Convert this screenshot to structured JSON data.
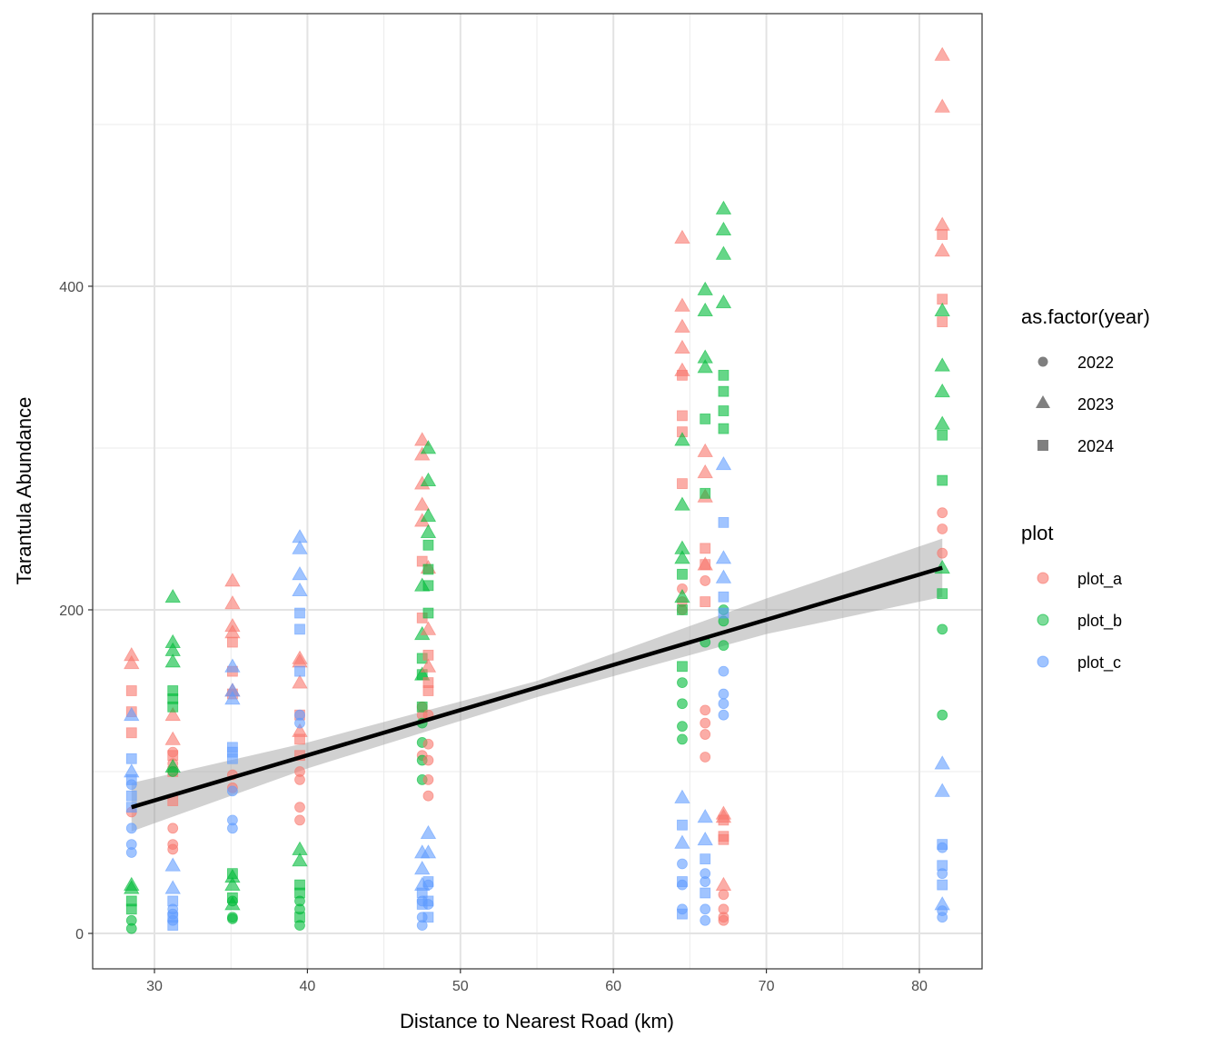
{
  "chart_data": {
    "type": "scatter",
    "xlabel": "Distance to Nearest Road (km)",
    "ylabel": "Tarantula Abundance",
    "xlim": [
      25.96,
      84.1
    ],
    "ylim": [
      -21.9,
      568.5
    ],
    "xticks": [
      30,
      40,
      50,
      60,
      70,
      80
    ],
    "yticks": [
      0,
      200,
      400
    ],
    "grid": true,
    "colors": {
      "plot_a": "#F8766D",
      "plot_b": "#00BA38",
      "plot_c": "#619CFF"
    },
    "shapes": {
      "2022": "circle",
      "2023": "triangle",
      "2024": "square"
    },
    "legend": {
      "placement": "right",
      "shape_title": "as.factor(year)",
      "shape_entries": [
        "2022",
        "2023",
        "2024"
      ],
      "color_title": "plot",
      "color_entries": [
        "plot_a",
        "plot_b",
        "plot_c"
      ]
    },
    "groups": [
      {
        "x": 28.5,
        "plot_a": {
          "2022": [
            75
          ],
          "2023": [
            172,
            167
          ],
          "2024": [
            150,
            137,
            124
          ]
        },
        "plot_b": {
          "2022": [
            8,
            3
          ],
          "2023": [
            30,
            28
          ],
          "2024": [
            20,
            15
          ]
        },
        "plot_c": {
          "2022": [
            92,
            65,
            55,
            50
          ],
          "2023": [
            135,
            100
          ],
          "2024": [
            108,
            95,
            85,
            78
          ]
        }
      },
      {
        "x": 31.2,
        "plot_a": {
          "2022": [
            112,
            105,
            65,
            55,
            52
          ],
          "2023": [
            135,
            120
          ],
          "2024": [
            110,
            100,
            82
          ]
        },
        "plot_b": {
          "2022": [
            100
          ],
          "2023": [
            208,
            180,
            175,
            168,
            103
          ],
          "2024": [
            150,
            145,
            140
          ]
        },
        "plot_c": {
          "2022": [
            15,
            12,
            8
          ],
          "2023": [
            42,
            28
          ],
          "2024": [
            20,
            10,
            5
          ]
        }
      },
      {
        "x": 35.1,
        "plot_a": {
          "2022": [
            98,
            90
          ],
          "2023": [
            218,
            204,
            190,
            186,
            150
          ],
          "2024": [
            180,
            162,
            148
          ]
        },
        "plot_b": {
          "2022": [
            20,
            10,
            9
          ],
          "2023": [
            35,
            30,
            18
          ],
          "2024": [
            37,
            22
          ]
        },
        "plot_c": {
          "2022": [
            88,
            70,
            65
          ],
          "2023": [
            165,
            150,
            145
          ],
          "2024": [
            115,
            112,
            108
          ]
        }
      },
      {
        "x": 39.5,
        "plot_a": {
          "2022": [
            100,
            95,
            78,
            70
          ],
          "2023": [
            170,
            168,
            155,
            125
          ],
          "2024": [
            135,
            120,
            110
          ]
        },
        "plot_b": {
          "2022": [
            20,
            15,
            5
          ],
          "2023": [
            52,
            45
          ],
          "2024": [
            30,
            25,
            10
          ]
        },
        "plot_c": {
          "2022": [
            135,
            130
          ],
          "2023": [
            245,
            238,
            222,
            212
          ],
          "2024": [
            198,
            188,
            162
          ]
        }
      },
      {
        "x": 47.5,
        "plot_a": {
          "2022": [
            140,
            135,
            110
          ],
          "2023": [
            305,
            296,
            278,
            265,
            255
          ],
          "2024": [
            230,
            195
          ]
        },
        "plot_b": {
          "2022": [
            130,
            118,
            107,
            95
          ],
          "2023": [
            215,
            185,
            160
          ],
          "2024": [
            170,
            160,
            140
          ]
        },
        "plot_c": {
          "2022": [
            20,
            10,
            5
          ],
          "2023": [
            50,
            40,
            30
          ],
          "2024": [
            25,
            18
          ]
        }
      },
      {
        "x": 47.9,
        "plot_a": {
          "2022": [
            135,
            117,
            107,
            95,
            85
          ],
          "2023": [
            226,
            188,
            165
          ],
          "2024": [
            172,
            155,
            150
          ]
        },
        "plot_b": {
          "2022": [],
          "2023": [
            300,
            280,
            258,
            248
          ],
          "2024": [
            240,
            225,
            215,
            198
          ]
        },
        "plot_c": {
          "2022": [
            30,
            18
          ],
          "2023": [
            62,
            50
          ],
          "2024": [
            32,
            20,
            10
          ]
        }
      },
      {
        "x": 64.5,
        "plot_a": {
          "2022": [
            213,
            205,
            200
          ],
          "2023": [
            430,
            388,
            375,
            362,
            348
          ],
          "2024": [
            345,
            320,
            310,
            278
          ]
        },
        "plot_b": {
          "2022": [
            155,
            142,
            128,
            120
          ],
          "2023": [
            305,
            265,
            238,
            232,
            208
          ],
          "2024": [
            222,
            200,
            165
          ]
        },
        "plot_c": {
          "2022": [
            43,
            30,
            15
          ],
          "2023": [
            84,
            56
          ],
          "2024": [
            67,
            32,
            12
          ]
        }
      },
      {
        "x": 66.0,
        "plot_a": {
          "2022": [
            218,
            138,
            130,
            123,
            109
          ],
          "2023": [
            298,
            285,
            270,
            228
          ],
          "2024": [
            238,
            228,
            205
          ]
        },
        "plot_b": {
          "2022": [
            180
          ],
          "2023": [
            398,
            385,
            356,
            350
          ],
          "2024": [
            318,
            272
          ]
        },
        "plot_c": {
          "2022": [
            37,
            32,
            15,
            8
          ],
          "2023": [
            72,
            58
          ],
          "2024": [
            46,
            25
          ]
        }
      },
      {
        "x": 67.2,
        "plot_a": {
          "2022": [
            24,
            15,
            10,
            8
          ],
          "2023": [
            74,
            72,
            30
          ],
          "2024": [
            70,
            60,
            58
          ]
        },
        "plot_b": {
          "2022": [
            200,
            193,
            178
          ],
          "2023": [
            448,
            435,
            420,
            390
          ],
          "2024": [
            345,
            335,
            323,
            312
          ]
        },
        "plot_c": {
          "2022": [
            162,
            148,
            142,
            135
          ],
          "2023": [
            290,
            232,
            220
          ],
          "2024": [
            254,
            208,
            198
          ]
        }
      },
      {
        "x": 81.5,
        "plot_a": {
          "2022": [
            260,
            250,
            235
          ],
          "2023": [
            543,
            511,
            438,
            422
          ],
          "2024": [
            432,
            392,
            378
          ]
        },
        "plot_b": {
          "2022": [
            188,
            135
          ],
          "2023": [
            385,
            351,
            335,
            315,
            226
          ],
          "2024": [
            308,
            280,
            210
          ]
        },
        "plot_c": {
          "2022": [
            53,
            37,
            14,
            10
          ],
          "2023": [
            105,
            88,
            18
          ],
          "2024": [
            55,
            42,
            30
          ]
        }
      }
    ],
    "fit": {
      "method": "linear",
      "x": [
        28.5,
        81.5
      ],
      "y": [
        78,
        226
      ],
      "ci_x": [
        28.5,
        40,
        55,
        70,
        81.5
      ],
      "ci_lower": [
        63,
        102,
        146,
        185,
        208
      ],
      "ci_upper": [
        93,
        118,
        156,
        207,
        244
      ]
    }
  }
}
